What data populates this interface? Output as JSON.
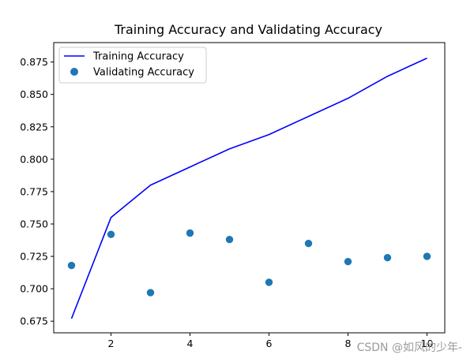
{
  "chart_data": {
    "type": "line",
    "title": "Training Accuracy and Validating Accuracy",
    "xlabel": "",
    "ylabel": "",
    "x": [
      1,
      2,
      3,
      4,
      5,
      6,
      7,
      8,
      9,
      10
    ],
    "xlim": [
      0.55,
      10.45
    ],
    "ylim": [
      0.666,
      0.89
    ],
    "xticks": [
      2,
      4,
      6,
      8,
      10
    ],
    "yticks": [
      0.675,
      0.7,
      0.725,
      0.75,
      0.775,
      0.8,
      0.825,
      0.85,
      0.875
    ],
    "grid": false,
    "legend": "top-left",
    "series": [
      {
        "name": "Training Accuracy",
        "style": "line",
        "color": "#0000ff",
        "values": [
          0.677,
          0.755,
          0.78,
          0.794,
          0.808,
          0.819,
          0.833,
          0.847,
          0.864,
          0.878
        ]
      },
      {
        "name": "Validating Accuracy",
        "style": "points",
        "color": "#1f77b4",
        "values": [
          0.718,
          0.742,
          0.697,
          0.743,
          0.738,
          0.705,
          0.735,
          0.721,
          0.724,
          0.725
        ]
      }
    ]
  },
  "watermark": "CSDN @如风的少年-"
}
